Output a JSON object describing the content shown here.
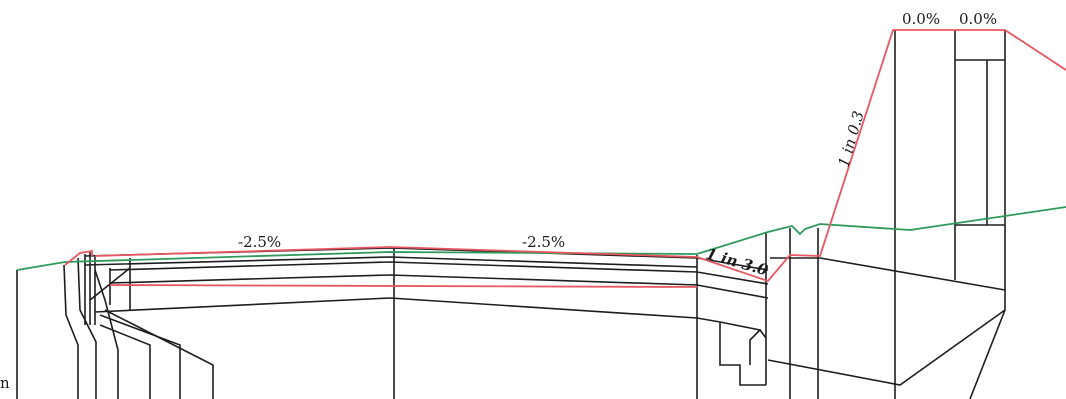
{
  "labels": {
    "slope_left": "-2.5%",
    "slope_right": "-2.5%",
    "batter_cut": "1 in 3.0",
    "batter_fill": "1 in 0.3",
    "flat_a": "0.0%",
    "flat_b": "0.0%",
    "edge_char": "n"
  },
  "colors": {
    "design_surface": "#e8575f",
    "existing_ground": "#2e9a5a",
    "structure": "#1e1e1e"
  }
}
